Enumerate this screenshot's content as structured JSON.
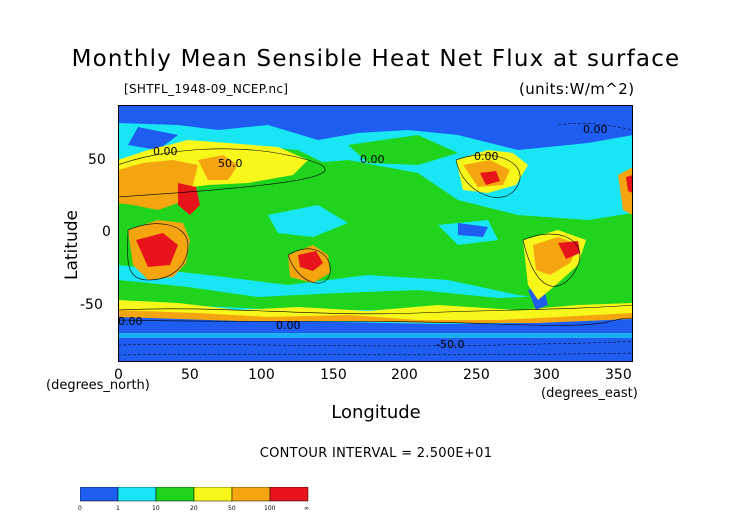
{
  "title": "Monthly Mean Sensible Heat Net Flux at surface",
  "file_label": "[SHTFL_1948-09_NCEP.nc]",
  "units_label": "(units:W/m^2)",
  "axes": {
    "ylabel": "Latitude",
    "xlabel": "Longitude",
    "y_unit_label": "(degrees_north)",
    "x_unit_label": "(degrees_east)",
    "y_ticks": [
      "50",
      "0",
      "-50"
    ],
    "x_ticks": [
      "0",
      "50",
      "100",
      "150",
      "200",
      "250",
      "300",
      "350"
    ]
  },
  "contour_interval": "CONTOUR INTERVAL = 2.500E+01",
  "contour_labels": [
    "0.00",
    "50.0",
    "0.00",
    "0.00",
    "0.00",
    "0.00",
    "0.00",
    "-50.0"
  ],
  "colors": {
    "blue": "#1f5cf0",
    "cyan": "#19e6f5",
    "green": "#20d41e",
    "yellow": "#f7f71b",
    "orange": "#f5a510",
    "red": "#e8141b"
  },
  "legend": {
    "colors": [
      "#1f5cf0",
      "#19e6f5",
      "#20d41e",
      "#f7f71b",
      "#f5a510",
      "#e8141b"
    ],
    "ticks": [
      "0",
      "1",
      "10",
      "20",
      "50",
      "100",
      "∞"
    ]
  }
}
